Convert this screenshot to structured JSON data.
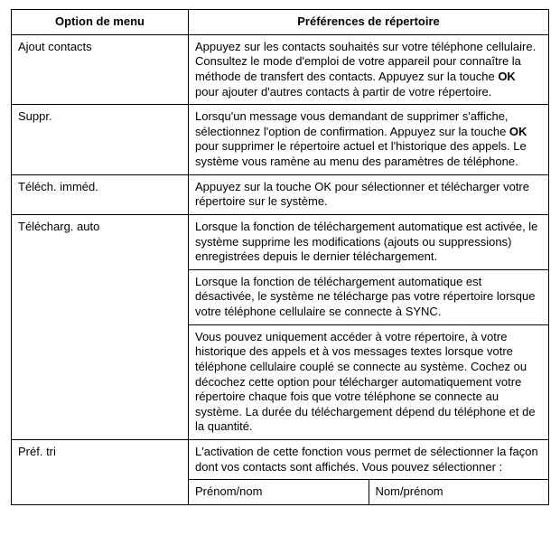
{
  "headers": {
    "col1": "Option de menu",
    "col2": "Préférences de répertoire"
  },
  "rows": {
    "ajout": {
      "label": "Ajout contacts",
      "text_a": "Appuyez sur les contacts souhaités sur votre téléphone cellulaire. Consultez le mode d'emploi de votre appareil pour connaître la méthode de transfert des contacts. Appuyez sur la touche ",
      "text_bold": "OK",
      "text_b": " pour ajouter d'autres contacts à partir de votre répertoire."
    },
    "suppr": {
      "label": "Suppr.",
      "text_a": "Lorsqu'un message vous demandant de supprimer s'affiche, sélectionnez l'option de confirmation. Appuyez sur la touche ",
      "text_bold": "OK",
      "text_b": " pour supprimer le répertoire actuel et l'historique des appels. Le système vous ramène au menu des paramètres de téléphone."
    },
    "telech_immed": {
      "label": "Téléch. imméd.",
      "text": "Appuyez sur la touche OK pour sélectionner et télécharger votre répertoire sur le système."
    },
    "telecharg_auto": {
      "label": "Télécharg. auto",
      "p1": "Lorsque la fonction de téléchargement automatique est activée, le système supprime les modifications (ajouts ou suppressions) enregistrées depuis le dernier télécharge­ment.",
      "p2": "Lorsque la fonction de téléchargement automatique est désactivée, le système ne télécharge pas votre répertoire lorsque votre téléphone cellulaire se connecte à SYNC.",
      "p3": "Vous pouvez uniquement accéder à votre répertoire, à votre historique des appels et à vos messages textes lorsque votre téléphone cellulaire couplé se connecte au système. Cochez ou décochez cette option pour télé­charger automatiquement votre répertoire chaque fois que votre téléphone se connecte au système. La durée du téléchargement dépend du téléphone et de la quantité."
    },
    "pref_tri": {
      "label": "Préf. tri",
      "text": "L'activation de cette fonction vous permet de sélectionner la façon dont vos contacts sont affichés. Vous pouvez sélectionner :",
      "opt1": "Prénom/nom",
      "opt2": "Nom/prénom"
    }
  }
}
